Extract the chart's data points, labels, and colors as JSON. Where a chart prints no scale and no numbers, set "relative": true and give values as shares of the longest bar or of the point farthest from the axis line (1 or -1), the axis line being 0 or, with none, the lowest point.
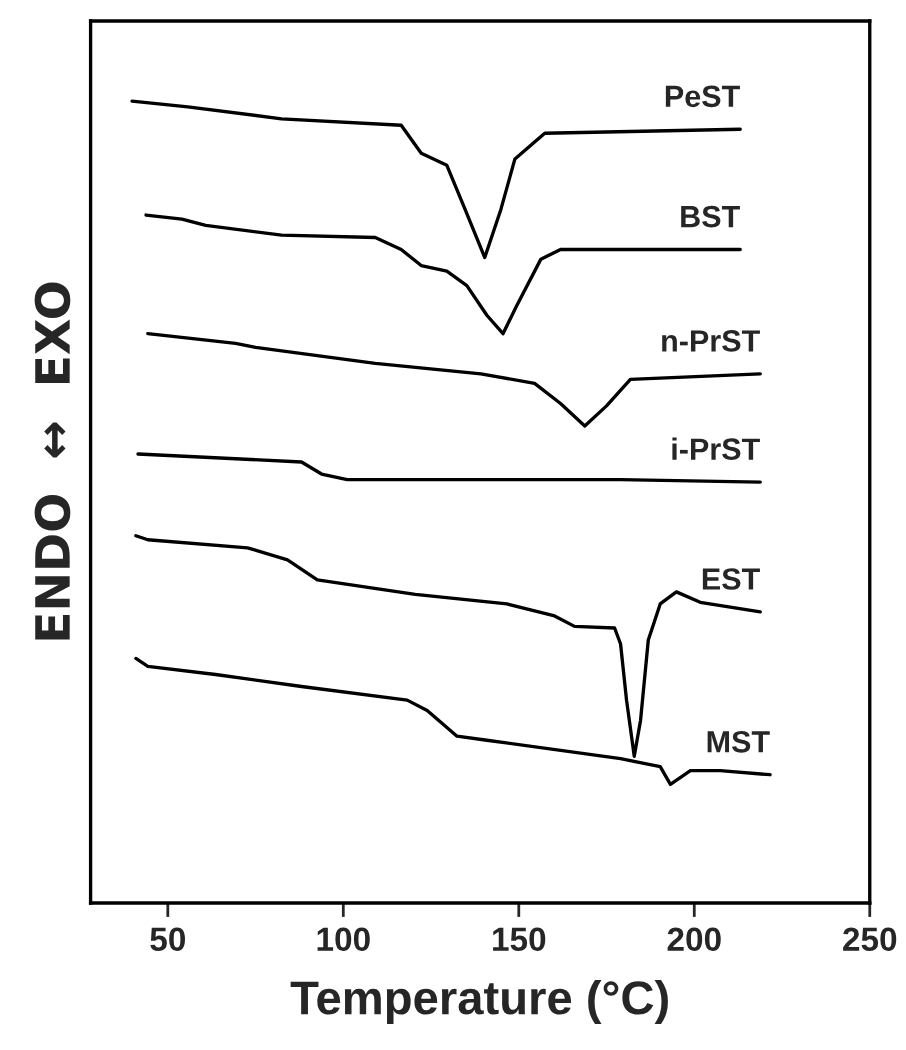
{
  "chart_data": {
    "type": "line",
    "relative": true,
    "xlabel": "Temperature (°C)",
    "ylabel": "ENDO  ↔  EXO",
    "xlim": [
      28,
      250
    ],
    "xticks": [
      50,
      100,
      150,
      200,
      250
    ],
    "grid": false,
    "legend": false,
    "marker": "none",
    "line_style": "solid",
    "series": [
      {
        "name": "PeST",
        "color": "#000000",
        "x": [
          39.8,
          55.7,
          82.4,
          116.5,
          122.2,
          129.5,
          134.7,
          140.3,
          144.9,
          148.9,
          157.4,
          213.1
        ],
        "values": [
          1.0,
          0.993,
          0.978,
          0.97,
          0.935,
          0.92,
          0.865,
          0.805,
          0.865,
          0.928,
          0.96,
          0.965
        ]
      },
      {
        "name": "BST",
        "color": "#000000",
        "x": [
          43.8,
          54.0,
          60.8,
          82.4,
          109.1,
          116.5,
          122.2,
          129.5,
          135.2,
          140.9,
          145.5,
          149.4,
          156.3,
          161.9,
          213.1
        ],
        "values": [
          0.858,
          0.853,
          0.845,
          0.833,
          0.83,
          0.815,
          0.795,
          0.788,
          0.77,
          0.733,
          0.71,
          0.745,
          0.803,
          0.815,
          0.815
        ]
      },
      {
        "name": "n-PrST",
        "color": "#000000",
        "x": [
          44.3,
          69.3,
          75.0,
          109.1,
          139.2,
          154.5,
          161.9,
          168.8,
          175.0,
          181.8,
          218.8
        ],
        "values": [
          0.71,
          0.698,
          0.693,
          0.673,
          0.66,
          0.648,
          0.623,
          0.595,
          0.62,
          0.653,
          0.66
        ]
      },
      {
        "name": "i-PrST",
        "color": "#000000",
        "x": [
          41.5,
          88.1,
          93.8,
          101.1,
          179.0,
          218.8
        ],
        "values": [
          0.56,
          0.55,
          0.535,
          0.528,
          0.528,
          0.525
        ]
      },
      {
        "name": "EST",
        "color": "#000000",
        "x": [
          40.9,
          44.3,
          72.7,
          84.1,
          92.6,
          120.5,
          146.6,
          160.2,
          165.9,
          177.3,
          179.0,
          180.7,
          182.9,
          184.7,
          186.9,
          190.3,
          194.9,
          201.7,
          218.8
        ],
        "values": [
          0.458,
          0.453,
          0.443,
          0.428,
          0.403,
          0.385,
          0.373,
          0.358,
          0.345,
          0.343,
          0.323,
          0.253,
          0.183,
          0.228,
          0.328,
          0.373,
          0.388,
          0.375,
          0.363
        ]
      },
      {
        "name": "MST",
        "color": "#000000",
        "x": [
          40.9,
          44.3,
          63.6,
          88.1,
          118.2,
          123.9,
          132.4,
          140.9,
          179.0,
          190.3,
          193.2,
          198.9,
          207.4,
          221.6
        ],
        "values": [
          0.305,
          0.295,
          0.285,
          0.27,
          0.253,
          0.24,
          0.208,
          0.203,
          0.18,
          0.17,
          0.148,
          0.165,
          0.165,
          0.16
        ]
      }
    ]
  }
}
